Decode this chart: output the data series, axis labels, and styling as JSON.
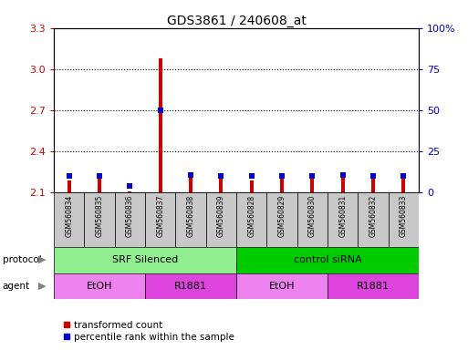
{
  "title": "GDS3861 / 240608_at",
  "samples": [
    "GSM560834",
    "GSM560835",
    "GSM560836",
    "GSM560837",
    "GSM560838",
    "GSM560839",
    "GSM560828",
    "GSM560829",
    "GSM560830",
    "GSM560831",
    "GSM560832",
    "GSM560833"
  ],
  "red_values": [
    2.19,
    2.21,
    2.11,
    3.08,
    2.22,
    2.21,
    2.19,
    2.2,
    2.21,
    2.21,
    2.21,
    2.21
  ],
  "blue_values": [
    2.22,
    2.22,
    2.15,
    2.7,
    2.23,
    2.22,
    2.22,
    2.22,
    2.22,
    2.23,
    2.22,
    2.22
  ],
  "ylim_left": [
    2.1,
    3.3
  ],
  "ylim_right": [
    0,
    100
  ],
  "yticks_left": [
    2.1,
    2.4,
    2.7,
    3.0,
    3.3
  ],
  "yticks_right": [
    0,
    25,
    50,
    75,
    100
  ],
  "ytick_labels_left": [
    "2.1",
    "2.4",
    "2.7",
    "3.0",
    "3.3"
  ],
  "ytick_labels_right": [
    "0",
    "25",
    "50",
    "75",
    "100%"
  ],
  "protocol_groups": [
    {
      "label": "SRF Silenced",
      "start": 0,
      "end": 5,
      "color": "#90EE90"
    },
    {
      "label": "control siRNA",
      "start": 6,
      "end": 11,
      "color": "#00CC00"
    }
  ],
  "agent_groups": [
    {
      "label": "EtOH",
      "start": 0,
      "end": 2,
      "color": "#EE82EE"
    },
    {
      "label": "R1881",
      "start": 3,
      "end": 5,
      "color": "#DD44DD"
    },
    {
      "label": "EtOH",
      "start": 6,
      "end": 8,
      "color": "#EE82EE"
    },
    {
      "label": "R1881",
      "start": 9,
      "end": 11,
      "color": "#DD44DD"
    }
  ],
  "bg_color": "#FFFFFF",
  "bar_color_red": "#CC0000",
  "bar_color_blue": "#0000CC",
  "sample_bg": "#C8C8C8",
  "left_axis_color": "#CC0000",
  "right_axis_color": "#0000CC",
  "grid_ticks": [
    2.4,
    2.7,
    3.0
  ]
}
